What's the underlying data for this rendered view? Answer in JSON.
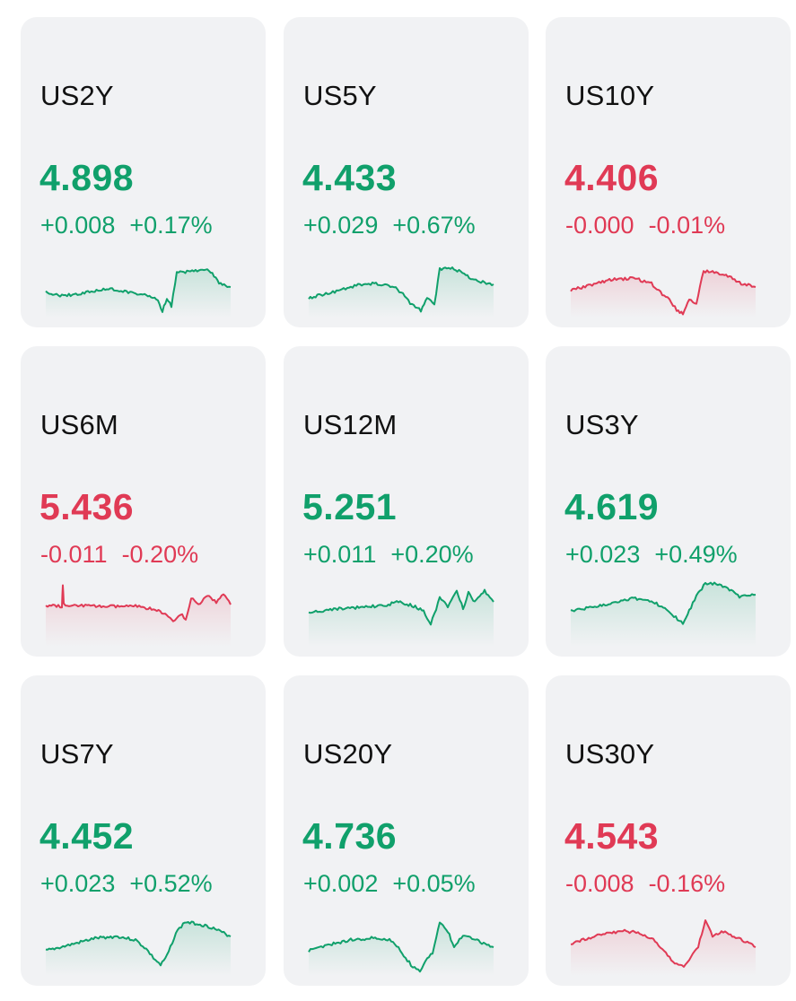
{
  "colors": {
    "up": "#10a06b",
    "down": "#e03a55",
    "card_bg": "#f1f2f4"
  },
  "cards": [
    {
      "symbol": "US2Y",
      "price": "4.898",
      "change": "+0.008",
      "change_pct": "+0.17%",
      "direction": "up"
    },
    {
      "symbol": "US5Y",
      "price": "4.433",
      "change": "+0.029",
      "change_pct": "+0.67%",
      "direction": "up"
    },
    {
      "symbol": "US10Y",
      "price": "4.406",
      "change": "-0.000",
      "change_pct": "-0.01%",
      "direction": "down"
    },
    {
      "symbol": "US6M",
      "price": "5.436",
      "change": "-0.011",
      "change_pct": "-0.20%",
      "direction": "down"
    },
    {
      "symbol": "US12M",
      "price": "5.251",
      "change": "+0.011",
      "change_pct": "+0.20%",
      "direction": "up"
    },
    {
      "symbol": "US3Y",
      "price": "4.619",
      "change": "+0.023",
      "change_pct": "+0.49%",
      "direction": "up"
    },
    {
      "symbol": "US7Y",
      "price": "4.452",
      "change": "+0.023",
      "change_pct": "+0.52%",
      "direction": "up"
    },
    {
      "symbol": "US20Y",
      "price": "4.736",
      "change": "+0.002",
      "change_pct": "+0.05%",
      "direction": "up"
    },
    {
      "symbol": "US30Y",
      "price": "4.543",
      "change": "-0.008",
      "change_pct": "-0.16%",
      "direction": "down"
    }
  ]
}
